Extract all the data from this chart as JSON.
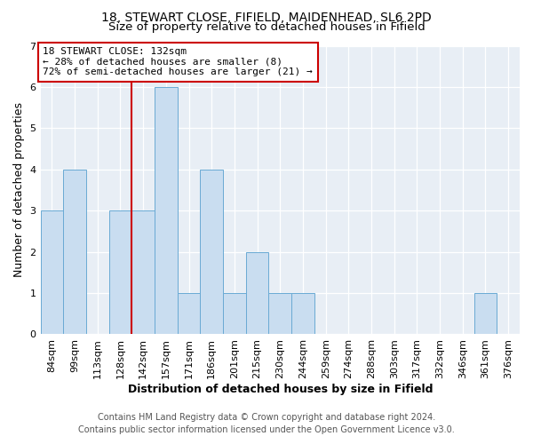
{
  "title": "18, STEWART CLOSE, FIFIELD, MAIDENHEAD, SL6 2PD",
  "subtitle": "Size of property relative to detached houses in Fifield",
  "xlabel": "Distribution of detached houses by size in Fifield",
  "ylabel": "Number of detached properties",
  "bar_labels": [
    "84sqm",
    "99sqm",
    "113sqm",
    "128sqm",
    "142sqm",
    "157sqm",
    "171sqm",
    "186sqm",
    "201sqm",
    "215sqm",
    "230sqm",
    "244sqm",
    "259sqm",
    "274sqm",
    "288sqm",
    "303sqm",
    "317sqm",
    "332sqm",
    "346sqm",
    "361sqm",
    "376sqm"
  ],
  "bar_values": [
    3,
    4,
    0,
    3,
    3,
    6,
    1,
    4,
    1,
    2,
    1,
    1,
    0,
    0,
    0,
    0,
    0,
    0,
    0,
    1,
    0
  ],
  "bar_color": "#c9ddf0",
  "bar_edge_color": "#6aaad4",
  "ylim": [
    0,
    7
  ],
  "yticks": [
    0,
    1,
    2,
    3,
    4,
    5,
    6,
    7
  ],
  "vline_x": 3.5,
  "vline_color": "#cc0000",
  "annotation_line1": "18 STEWART CLOSE: 132sqm",
  "annotation_line2": "← 28% of detached houses are smaller (8)",
  "annotation_line3": "72% of semi-detached houses are larger (21) →",
  "annotation_box_color": "#ffffff",
  "annotation_box_edge": "#cc0000",
  "footer_line1": "Contains HM Land Registry data © Crown copyright and database right 2024.",
  "footer_line2": "Contains public sector information licensed under the Open Government Licence v3.0.",
  "title_fontsize": 10,
  "subtitle_fontsize": 9.5,
  "axis_label_fontsize": 9,
  "tick_fontsize": 8,
  "annotation_fontsize": 8,
  "footer_fontsize": 7,
  "bg_color": "#e8eef5"
}
